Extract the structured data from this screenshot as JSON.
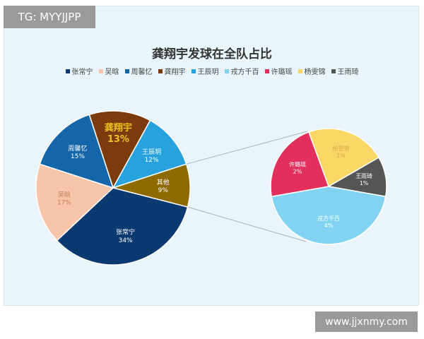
{
  "watermark_top": "TG: MYYJJPP",
  "watermark_bottom": "www.jjxnmy.com",
  "chart_data": {
    "type": "pie",
    "title": "龚翔宇发球在全队占比",
    "legend": [
      "张常宁",
      "吴晗",
      "周馨忆",
      "龚翔宇",
      "王辰玥",
      "戎方千百",
      "许璐瑶",
      "杨雯锦",
      "王雨琦"
    ],
    "legend_position": "top",
    "colors": {
      "张常宁": "#0b3a70",
      "吴晗": "#f7c6aa",
      "周馨忆": "#1566a8",
      "龚翔宇": "#7a3c0c",
      "王辰玥": "#27a2dc",
      "戎方千百": "#82d3f2",
      "许璐瑶": "#e22f5e",
      "杨雯锦": "#fbd766",
      "王雨琦": "#555555",
      "其他": "#8f6a00"
    },
    "main_pie": [
      {
        "label": "张常宁",
        "value": 34,
        "text": "34%"
      },
      {
        "label": "吴晗",
        "value": 17,
        "text": "17%"
      },
      {
        "label": "周馨忆",
        "value": 15,
        "text": "15%"
      },
      {
        "label": "龚翔宇",
        "value": 13,
        "text": "13%"
      },
      {
        "label": "王辰玥",
        "value": 12,
        "text": "12%"
      },
      {
        "label": "其他",
        "value": 9,
        "text": "9%"
      }
    ],
    "sub_pie": [
      {
        "label": "杨雯锦",
        "value": 2,
        "text": "2%"
      },
      {
        "label": "王雨琦",
        "value": 1,
        "text": "1%"
      },
      {
        "label": "戎方千百",
        "value": 4,
        "text": "4%"
      },
      {
        "label": "许璐瑶",
        "value": 2,
        "text": "2%"
      }
    ]
  }
}
